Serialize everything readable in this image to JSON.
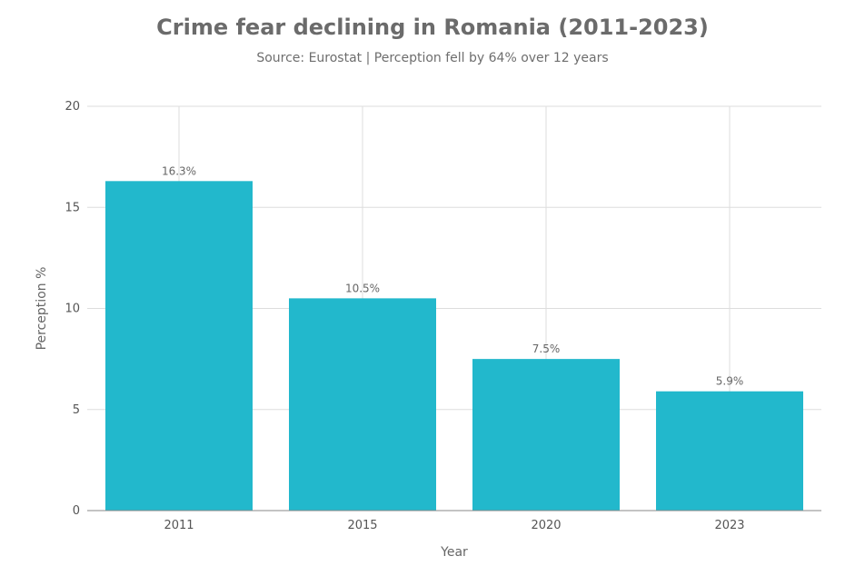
{
  "header": {
    "title": "Crime fear declining in Romania (2011-2023)",
    "subtitle": "Source: Eurostat | Perception fell by 64% over 12 years"
  },
  "chart_data": {
    "type": "bar",
    "categories": [
      "2011",
      "2015",
      "2020",
      "2023"
    ],
    "values": [
      16.3,
      10.5,
      7.5,
      5.9
    ],
    "data_labels": [
      "16.3%",
      "10.5%",
      "7.5%",
      "5.9%"
    ],
    "title": "Crime fear declining in Romania (2011-2023)",
    "subtitle": "Source: Eurostat | Perception fell by 64% over 12 years",
    "xlabel": "Year",
    "ylabel": "Perception %",
    "ylim": [
      0,
      20
    ],
    "yticks": [
      0,
      5,
      10,
      15,
      20
    ],
    "grid": true,
    "legend": "none",
    "colors": {
      "bar": "#22b8cc",
      "grid": "#dddddd",
      "axis": "#888888"
    }
  }
}
